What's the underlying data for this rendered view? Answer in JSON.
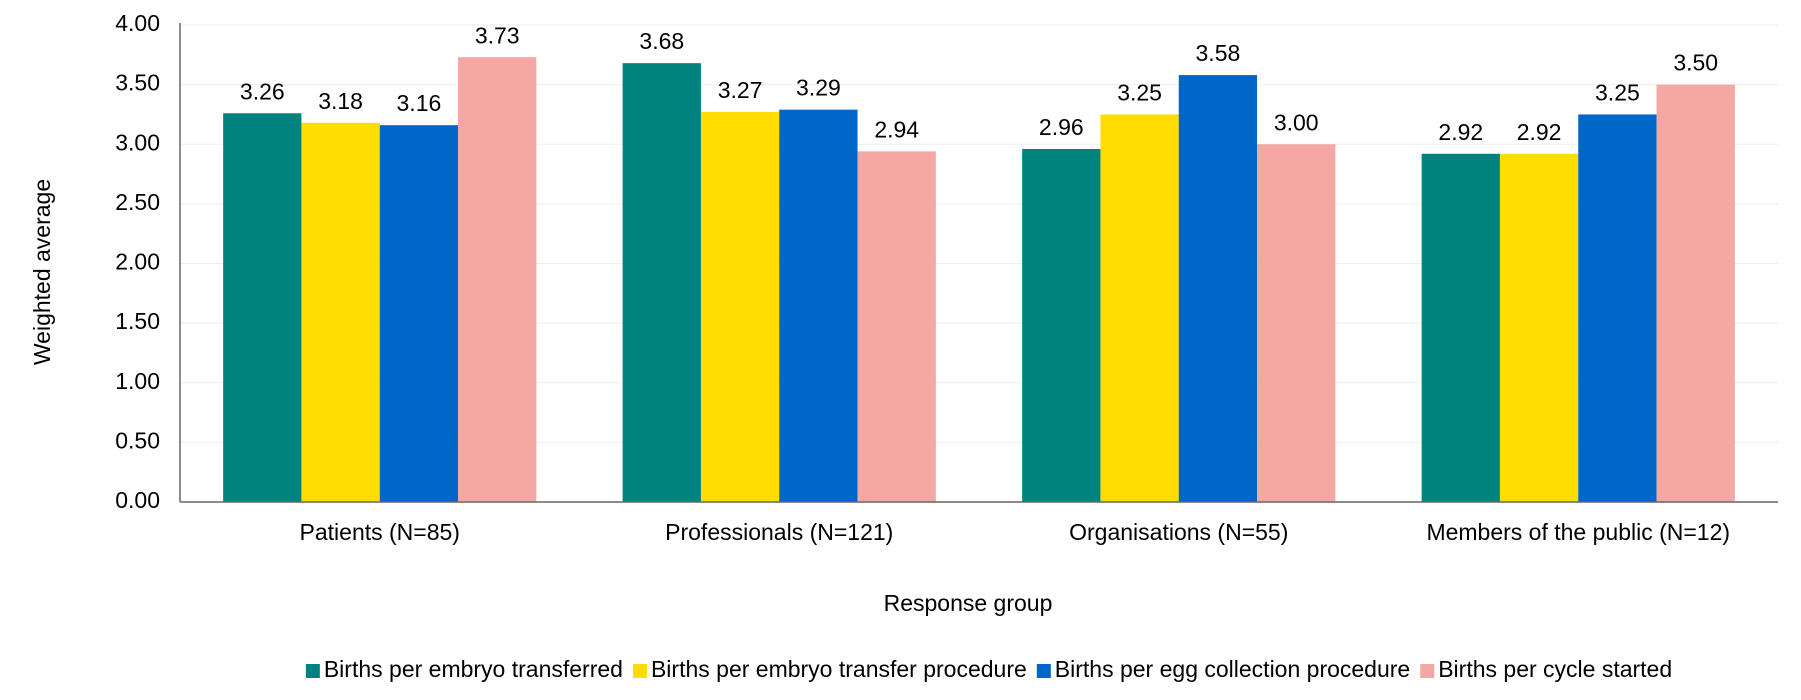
{
  "chart_data": {
    "type": "bar",
    "x_label": "Response group",
    "y_label": "Weighted average",
    "categories": [
      "Patients (N=85)",
      "Professionals (N=121)",
      "Organisations (N=55)",
      "Members of the public (N=12)"
    ],
    "series": [
      {
        "name": "Births per embryo transferred",
        "color": "#00827f",
        "values": [
          3.26,
          3.68,
          2.96,
          2.92
        ],
        "value_labels": [
          "3.26",
          "3.68",
          "2.96",
          "2.92"
        ]
      },
      {
        "name": "Births per embryo transfer procedure",
        "color": "#ffdd00",
        "values": [
          3.18,
          3.27,
          3.25,
          2.92
        ],
        "value_labels": [
          "3.18",
          "3.27",
          "3.25",
          "2.92"
        ]
      },
      {
        "name": "Births per egg collection procedure",
        "color": "#0066c8",
        "values": [
          3.16,
          3.29,
          3.58,
          3.25
        ],
        "value_labels": [
          "3.16",
          "3.29",
          "3.58",
          "3.25"
        ]
      },
      {
        "name": "Births per cycle started",
        "color": "#f4a7a3",
        "values": [
          3.73,
          2.94,
          3.0,
          3.5
        ],
        "value_labels": [
          "3.73",
          "2.94",
          "3.00",
          "3.50"
        ]
      }
    ],
    "ylim": [
      0,
      4
    ],
    "yticks": [
      {
        "value": 0,
        "label": "0.00"
      },
      {
        "value": 0.5,
        "label": "0.50"
      },
      {
        "value": 1,
        "label": "1.00"
      },
      {
        "value": 1.5,
        "label": "1.50"
      },
      {
        "value": 2,
        "label": "2.00"
      },
      {
        "value": 2.5,
        "label": "2.50"
      },
      {
        "value": 3,
        "label": "3.00"
      },
      {
        "value": 3.5,
        "label": "3.50"
      },
      {
        "value": 4,
        "label": "4.00"
      }
    ],
    "grid": true,
    "legend": "bottom"
  }
}
